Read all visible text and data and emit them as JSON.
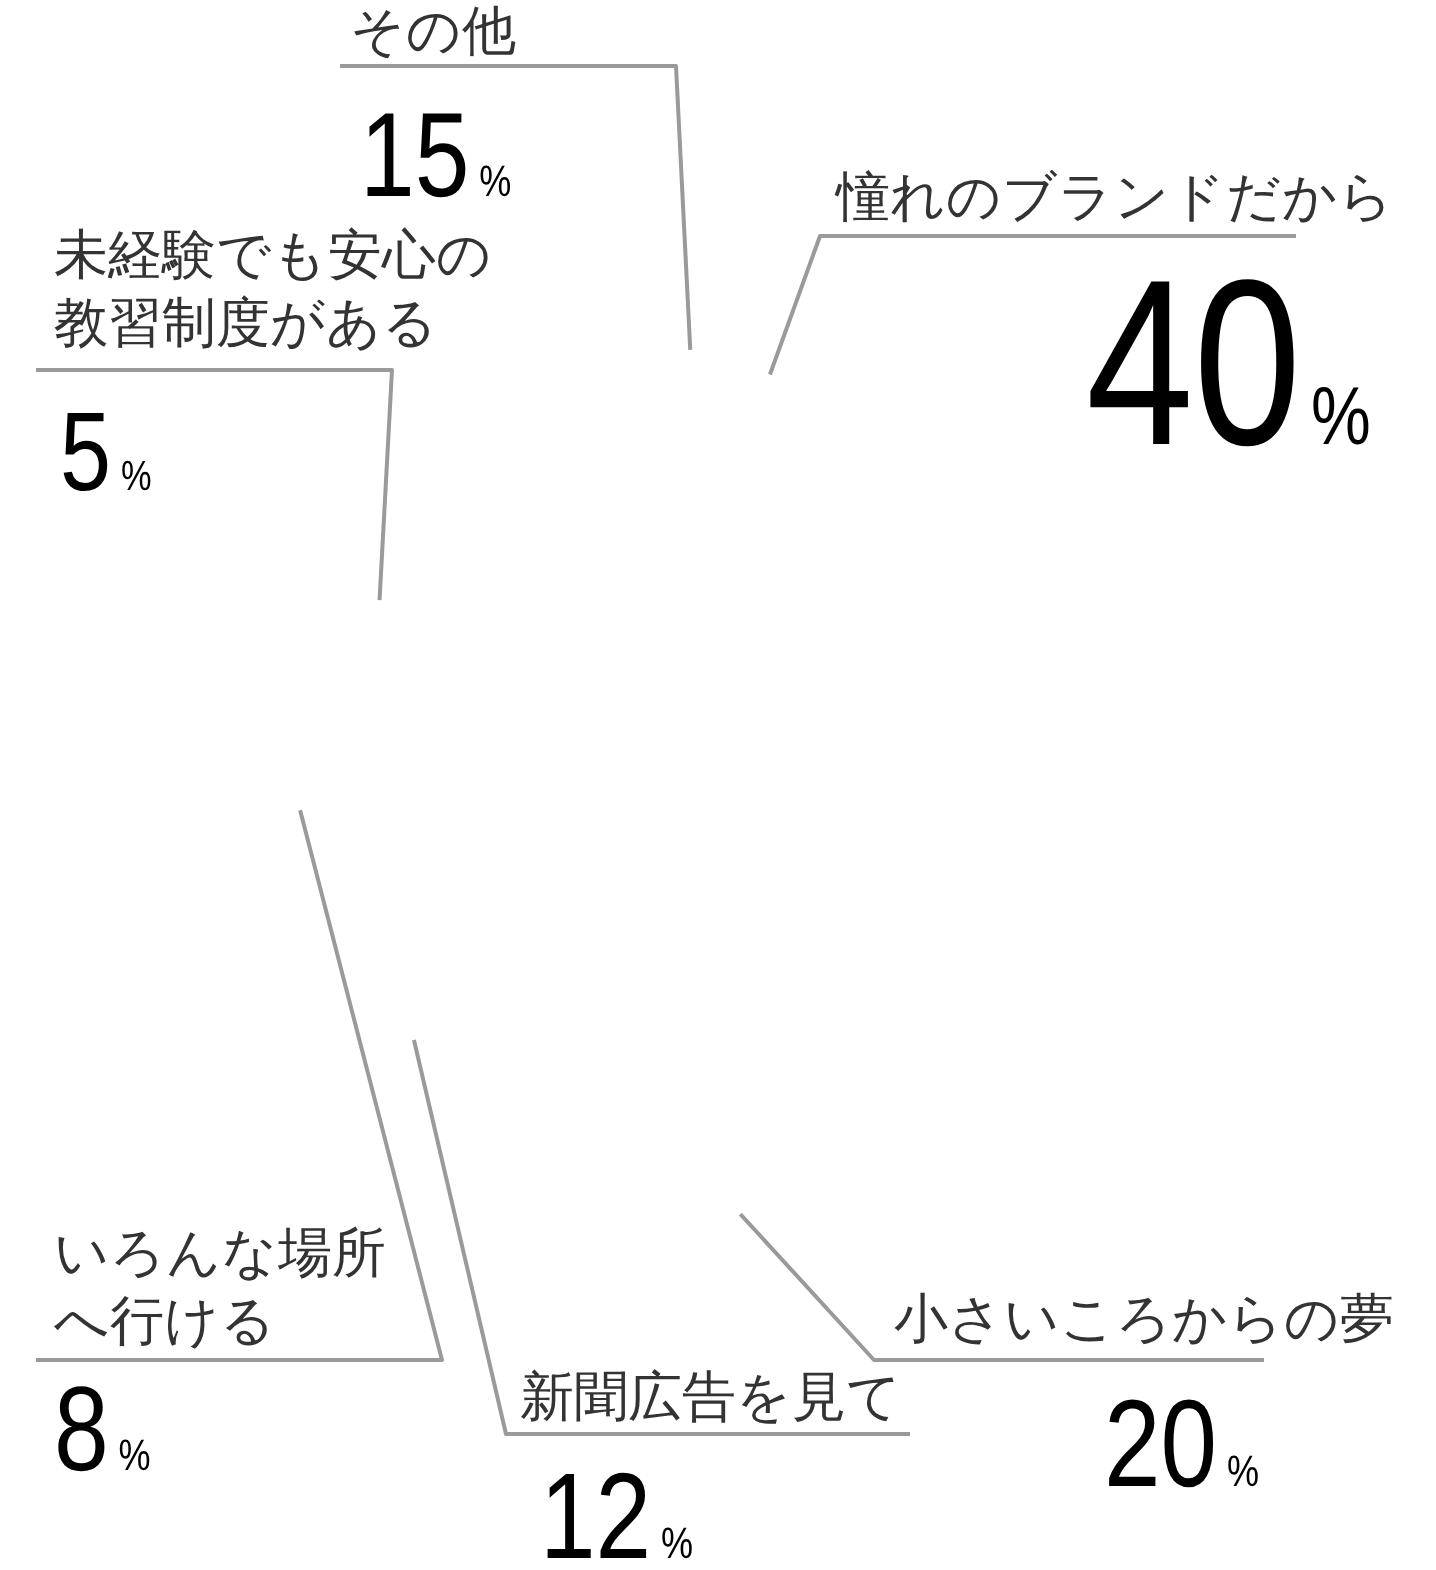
{
  "chart_data": {
    "type": "other",
    "categories": [
      "憧れのブランドだから",
      "小さいころからの夢",
      "新聞広告を見て",
      "いろんな場所へ行ける",
      "未経験でも安心の教習制度がある",
      "その他"
    ],
    "values": [
      40,
      20,
      12,
      8,
      5,
      15
    ],
    "value_labels": [
      "40%",
      "20%",
      "12%",
      "8%",
      "5%",
      "15%"
    ]
  }
}
